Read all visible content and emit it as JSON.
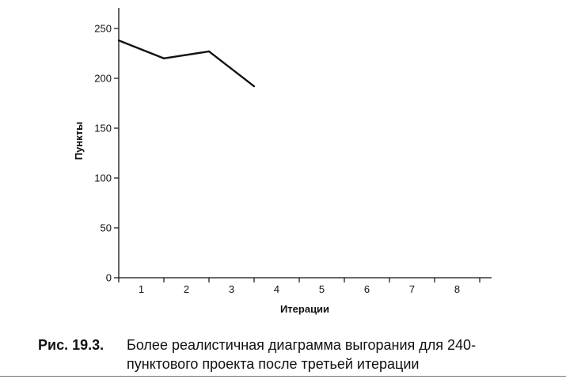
{
  "chart_data": {
    "type": "line",
    "xlabel": "Итерации",
    "ylabel": "Пункты",
    "x_ticks": [
      "1",
      "2",
      "3",
      "4",
      "5",
      "6",
      "7",
      "8"
    ],
    "y_ticks": [
      "0",
      "50",
      "100",
      "150",
      "200",
      "250"
    ],
    "ylim": [
      0,
      270
    ],
    "grid": false,
    "series": [
      {
        "x": [
          0,
          1,
          2,
          3
        ],
        "values": [
          238,
          220,
          227,
          192
        ]
      }
    ],
    "line_color": "#111111"
  },
  "caption": {
    "label": "Рис. 19.3.",
    "text": "Более реалистичная диаграмма выгорания для 240-пунктового проекта после третьей итерации"
  }
}
